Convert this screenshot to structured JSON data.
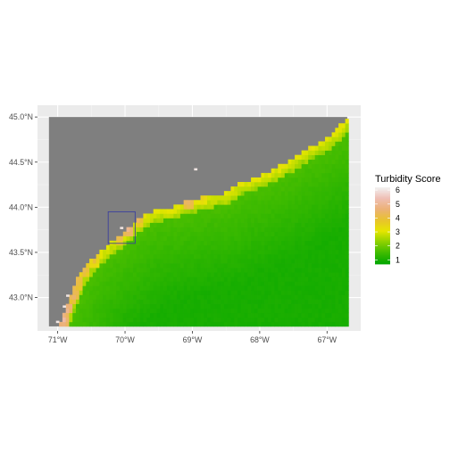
{
  "chart_data": {
    "type": "heatmap",
    "title": "",
    "xlabel": "",
    "ylabel": "",
    "x_ticks": [
      {
        "value": -71,
        "label": "71°W"
      },
      {
        "value": -70,
        "label": "70°W"
      },
      {
        "value": -69,
        "label": "69°W"
      },
      {
        "value": -68,
        "label": "68°W"
      },
      {
        "value": -67,
        "label": "67°W"
      }
    ],
    "y_ticks": [
      {
        "value": 43.0,
        "label": "43.0°N"
      },
      {
        "value": 43.5,
        "label": "43.5°N"
      },
      {
        "value": 44.0,
        "label": "44.0°N"
      },
      {
        "value": 44.5,
        "label": "44.5°N"
      },
      {
        "value": 45.0,
        "label": "45.0°N"
      }
    ],
    "xlim": [
      -71.3,
      -66.5
    ],
    "ylim": [
      42.63,
      45.13
    ],
    "data_extent": {
      "lon": [
        -71.13,
        -66.7
      ],
      "lat": [
        42.68,
        45.0
      ]
    },
    "cell_size_deg": 0.05,
    "land_color": "#7f7f7f",
    "panel_background": "#ebebeb",
    "grid": true,
    "legend": {
      "title": "Turbidity Score",
      "placement": "right",
      "breaks": [
        1,
        2,
        3,
        4,
        5,
        6
      ],
      "labels": [
        "1",
        "2",
        "3",
        "4",
        "5",
        "6"
      ],
      "range": [
        0.7,
        6.2
      ],
      "colors": [
        "#00a600",
        "#3ebb00",
        "#8bd000",
        "#e6e600",
        "#e8c32e",
        "#ecb176",
        "#efbfb5",
        "#f2f2f2"
      ]
    },
    "coastline_lonlat": [
      [
        -71.13,
        42.68
      ],
      [
        -70.97,
        42.68
      ],
      [
        -70.93,
        42.75
      ],
      [
        -70.87,
        42.9
      ],
      [
        -70.8,
        43.05
      ],
      [
        -70.72,
        43.2
      ],
      [
        -70.6,
        43.33
      ],
      [
        -70.5,
        43.42
      ],
      [
        -70.35,
        43.52
      ],
      [
        -70.2,
        43.62
      ],
      [
        -70.05,
        43.7
      ],
      [
        -69.9,
        43.8
      ],
      [
        -69.75,
        43.9
      ],
      [
        -69.5,
        43.98
      ],
      [
        -69.3,
        44.0
      ],
      [
        -69.15,
        44.05
      ],
      [
        -68.95,
        44.08
      ],
      [
        -68.8,
        44.12
      ],
      [
        -68.55,
        44.15
      ],
      [
        -68.3,
        44.27
      ],
      [
        -68.05,
        44.33
      ],
      [
        -67.8,
        44.42
      ],
      [
        -67.6,
        44.5
      ],
      [
        -67.4,
        44.6
      ],
      [
        -67.15,
        44.7
      ],
      [
        -66.95,
        44.8
      ],
      [
        -66.82,
        44.9
      ],
      [
        -66.7,
        45.0
      ]
    ],
    "nearshore_band": {
      "width_deg": 0.13,
      "value": 2.2
    },
    "offshore_values": {
      "inshore": 1.6,
      "offshore": 1.0
    },
    "turbid_patches": [
      {
        "lon": -70.92,
        "lat": 42.75,
        "value": 5.0
      },
      {
        "lon": -70.86,
        "lat": 42.88,
        "value": 4.8
      },
      {
        "lon": -70.78,
        "lat": 43.03,
        "value": 4.5
      },
      {
        "lon": -70.7,
        "lat": 43.17,
        "value": 4.2
      },
      {
        "lon": -70.6,
        "lat": 43.3,
        "value": 4.0
      },
      {
        "lon": -70.45,
        "lat": 43.42,
        "value": 3.8
      },
      {
        "lon": -70.1,
        "lat": 43.68,
        "value": 4.3
      },
      {
        "lon": -69.95,
        "lat": 43.77,
        "value": 4.8
      },
      {
        "lon": -69.8,
        "lat": 43.88,
        "value": 4.2
      },
      {
        "lon": -69.05,
        "lat": 44.07,
        "value": 4.5
      },
      {
        "lon": -68.95,
        "lat": 44.15,
        "value": 5.0
      },
      {
        "lon": -68.85,
        "lat": 44.12,
        "value": 3.5
      },
      {
        "lon": -68.45,
        "lat": 44.23,
        "value": 2.8
      },
      {
        "lon": -67.75,
        "lat": 44.48,
        "value": 2.0
      }
    ],
    "white_pixels": [
      {
        "lon": -71.0,
        "lat": 42.73,
        "value": 6.0
      },
      {
        "lon": -70.9,
        "lat": 42.9,
        "value": 6.0
      },
      {
        "lon": -70.85,
        "lat": 43.02,
        "value": 6.0
      },
      {
        "lon": -70.05,
        "lat": 43.77,
        "value": 6.0
      },
      {
        "lon": -68.95,
        "lat": 44.42,
        "value": 6.0
      }
    ],
    "highlight_box": {
      "lon": [
        -70.25,
        -69.85
      ],
      "lat": [
        43.6,
        43.95
      ],
      "color": "#3b3f9e"
    }
  }
}
